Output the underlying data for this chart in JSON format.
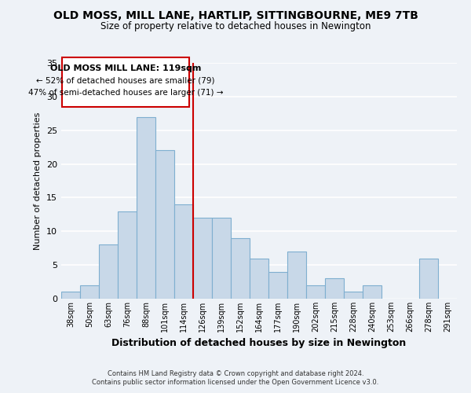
{
  "title": "OLD MOSS, MILL LANE, HARTLIP, SITTINGBOURNE, ME9 7TB",
  "subtitle": "Size of property relative to detached houses in Newington",
  "xlabel": "Distribution of detached houses by size in Newington",
  "ylabel": "Number of detached properties",
  "bar_color": "#c8d8e8",
  "bar_edge_color": "#7fafd0",
  "categories": [
    "38sqm",
    "50sqm",
    "63sqm",
    "76sqm",
    "88sqm",
    "101sqm",
    "114sqm",
    "126sqm",
    "139sqm",
    "152sqm",
    "164sqm",
    "177sqm",
    "190sqm",
    "202sqm",
    "215sqm",
    "228sqm",
    "240sqm",
    "253sqm",
    "266sqm",
    "278sqm",
    "291sqm"
  ],
  "values": [
    1,
    2,
    8,
    13,
    27,
    22,
    14,
    12,
    12,
    9,
    6,
    4,
    7,
    2,
    3,
    1,
    2,
    0,
    0,
    6,
    0
  ],
  "ylim": [
    0,
    35
  ],
  "yticks": [
    0,
    5,
    10,
    15,
    20,
    25,
    30,
    35
  ],
  "vline_x": 6.5,
  "vline_color": "#cc0000",
  "annotation_title": "OLD MOSS MILL LANE: 119sqm",
  "annotation_line2": "← 52% of detached houses are smaller (79)",
  "annotation_line3": "47% of semi-detached houses are larger (71) →",
  "footer1": "Contains HM Land Registry data © Crown copyright and database right 2024.",
  "footer2": "Contains public sector information licensed under the Open Government Licence v3.0.",
  "background_color": "#eef2f7",
  "grid_color": "white"
}
